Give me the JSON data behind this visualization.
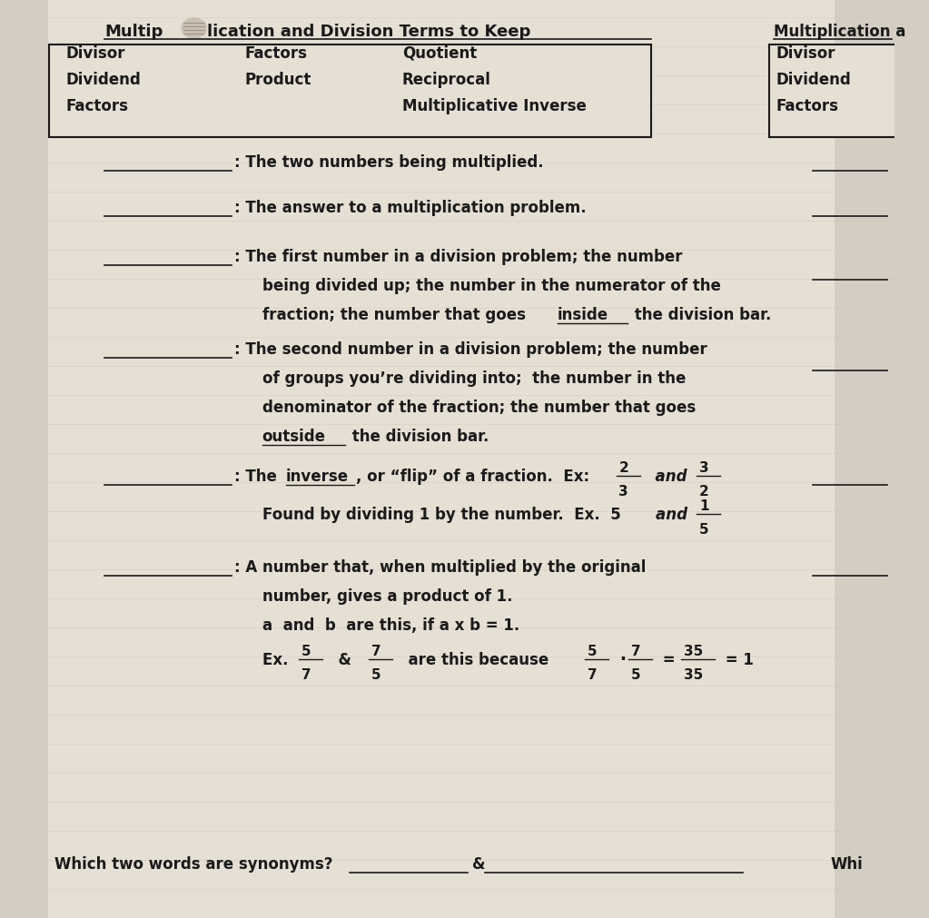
{
  "bg_color": "#d4cdc2",
  "paper_color": "#e5dfd4",
  "box_words_col1": [
    "Divisor",
    "Dividend",
    "Factors"
  ],
  "box_words_col2": [
    "Factors",
    "Product"
  ],
  "box_words_col3": [
    "Quotient",
    "Reciprocal",
    "Multiplicative Inverse"
  ],
  "right_box_words": [
    "Divisor",
    "Dividend",
    "Factors"
  ],
  "title_left": "Multip",
  "title_right": "lication and Division Terms to Keep",
  "right_title": "Multiplication a",
  "synonyms_label": "Which two words are synonyms?",
  "synonyms_amp": "&",
  "right_lines_y": [
    8.28,
    7.78,
    7.08,
    6.08,
    4.82,
    3.82
  ]
}
